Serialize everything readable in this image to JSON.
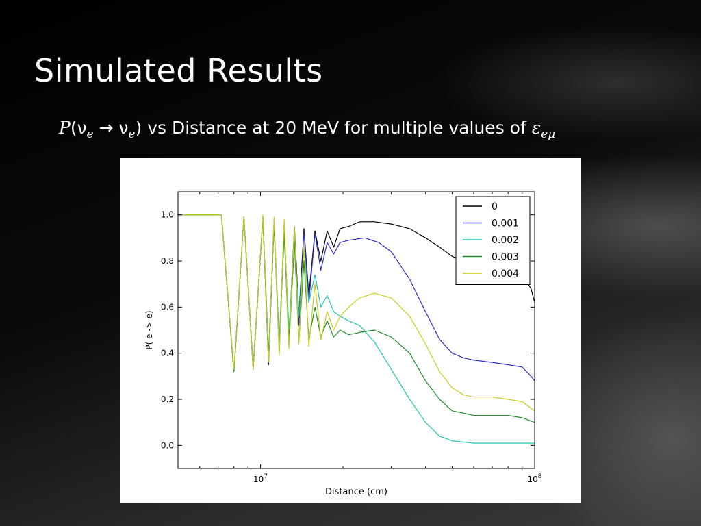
{
  "slide": {
    "title": "Simulated Results",
    "subtitle_prefix_p": "P",
    "subtitle_open": "(ν",
    "subtitle_sub1": "e",
    "subtitle_arrow": " → ν",
    "subtitle_sub2": "e",
    "subtitle_close": ")",
    "subtitle_text": " vs Distance at 20 MeV for multiple values of ",
    "subtitle_epsilon": "ε",
    "subtitle_epsilon_sub": "eμ"
  },
  "chart_data": {
    "type": "line",
    "xlabel": "Distance (cm)",
    "ylabel": "P( e -> e)",
    "x_scale": "log",
    "xlim": [
      5000000,
      100000000
    ],
    "ylim": [
      -0.1,
      1.1
    ],
    "x_ticks": [
      10000000,
      100000000
    ],
    "x_tick_labels": [
      {
        "base": "10",
        "exp": "7"
      },
      {
        "base": "10",
        "exp": "8"
      }
    ],
    "y_ticks": [
      0.0,
      0.2,
      0.4,
      0.6,
      0.8,
      1.0
    ],
    "y_tick_labels": [
      "0.0",
      "0.2",
      "0.4",
      "0.6",
      "0.8",
      "1.0"
    ],
    "grid": false,
    "legend_position": "top-right",
    "series": [
      {
        "name": "0",
        "color": "#000000",
        "points": [
          [
            5000000,
            1.0
          ],
          [
            7200000,
            1.0
          ],
          [
            8000000,
            0.32
          ],
          [
            8700000,
            0.99
          ],
          [
            9400000,
            0.33
          ],
          [
            10200000,
            0.99
          ],
          [
            10700000,
            0.35
          ],
          [
            11200000,
            0.97
          ],
          [
            11700000,
            0.42
          ],
          [
            12200000,
            0.96
          ],
          [
            12700000,
            0.46
          ],
          [
            13300000,
            0.95
          ],
          [
            13800000,
            0.56
          ],
          [
            14400000,
            0.94
          ],
          [
            15000000,
            0.65
          ],
          [
            15800000,
            0.93
          ],
          [
            16600000,
            0.8
          ],
          [
            17500000,
            0.93
          ],
          [
            18500000,
            0.86
          ],
          [
            19500000,
            0.94
          ],
          [
            21000000,
            0.95
          ],
          [
            23000000,
            0.97
          ],
          [
            26000000,
            0.97
          ],
          [
            30000000,
            0.96
          ],
          [
            35000000,
            0.94
          ],
          [
            40000000,
            0.9
          ],
          [
            45000000,
            0.86
          ],
          [
            50000000,
            0.82
          ],
          [
            55000000,
            0.8
          ],
          [
            60000000,
            0.79
          ],
          [
            70000000,
            0.78
          ],
          [
            80000000,
            0.76
          ],
          [
            90000000,
            0.74
          ],
          [
            97000000,
            0.68
          ],
          [
            100000000,
            0.62
          ]
        ]
      },
      {
        "name": "0.001",
        "color": "#2b2bcc",
        "points": [
          [
            5000000,
            1.0
          ],
          [
            7200000,
            1.0
          ],
          [
            8000000,
            0.32
          ],
          [
            8700000,
            0.99
          ],
          [
            9400000,
            0.33
          ],
          [
            10200000,
            0.99
          ],
          [
            10700000,
            0.36
          ],
          [
            11200000,
            0.97
          ],
          [
            11700000,
            0.4
          ],
          [
            12200000,
            0.95
          ],
          [
            12700000,
            0.45
          ],
          [
            13300000,
            0.94
          ],
          [
            13800000,
            0.52
          ],
          [
            14400000,
            0.93
          ],
          [
            15000000,
            0.62
          ],
          [
            15800000,
            0.92
          ],
          [
            16600000,
            0.76
          ],
          [
            17500000,
            0.88
          ],
          [
            18500000,
            0.83
          ],
          [
            19500000,
            0.88
          ],
          [
            21000000,
            0.89
          ],
          [
            24000000,
            0.9
          ],
          [
            27000000,
            0.88
          ],
          [
            30000000,
            0.84
          ],
          [
            35000000,
            0.72
          ],
          [
            40000000,
            0.58
          ],
          [
            45000000,
            0.46
          ],
          [
            50000000,
            0.4
          ],
          [
            55000000,
            0.38
          ],
          [
            60000000,
            0.37
          ],
          [
            70000000,
            0.36
          ],
          [
            80000000,
            0.35
          ],
          [
            90000000,
            0.34
          ],
          [
            97000000,
            0.3
          ],
          [
            100000000,
            0.28
          ]
        ]
      },
      {
        "name": "0.002",
        "color": "#22c4b0",
        "points": [
          [
            5000000,
            1.0
          ],
          [
            7200000,
            1.0
          ],
          [
            8000000,
            0.32
          ],
          [
            8700000,
            0.99
          ],
          [
            9400000,
            0.34
          ],
          [
            10200000,
            0.99
          ],
          [
            10700000,
            0.4
          ],
          [
            11200000,
            0.97
          ],
          [
            11700000,
            0.45
          ],
          [
            12200000,
            0.93
          ],
          [
            12700000,
            0.5
          ],
          [
            13300000,
            0.9
          ],
          [
            13800000,
            0.56
          ],
          [
            14400000,
            0.85
          ],
          [
            15000000,
            0.62
          ],
          [
            15800000,
            0.74
          ],
          [
            16600000,
            0.6
          ],
          [
            17500000,
            0.65
          ],
          [
            18500000,
            0.58
          ],
          [
            19500000,
            0.56
          ],
          [
            21000000,
            0.54
          ],
          [
            23000000,
            0.52
          ],
          [
            26000000,
            0.45
          ],
          [
            30000000,
            0.33
          ],
          [
            35000000,
            0.2
          ],
          [
            40000000,
            0.1
          ],
          [
            45000000,
            0.04
          ],
          [
            50000000,
            0.02
          ],
          [
            60000000,
            0.01
          ],
          [
            80000000,
            0.01
          ],
          [
            100000000,
            0.01
          ]
        ]
      },
      {
        "name": "0.003",
        "color": "#1f8c2a",
        "points": [
          [
            5000000,
            1.0
          ],
          [
            7200000,
            1.0
          ],
          [
            8000000,
            0.32
          ],
          [
            8700000,
            0.99
          ],
          [
            9400000,
            0.34
          ],
          [
            10200000,
            0.99
          ],
          [
            10700000,
            0.38
          ],
          [
            11200000,
            0.97
          ],
          [
            11700000,
            0.42
          ],
          [
            12200000,
            0.92
          ],
          [
            12700000,
            0.43
          ],
          [
            13300000,
            0.88
          ],
          [
            13800000,
            0.45
          ],
          [
            14400000,
            0.8
          ],
          [
            15000000,
            0.46
          ],
          [
            15800000,
            0.6
          ],
          [
            16600000,
            0.47
          ],
          [
            17500000,
            0.54
          ],
          [
            18500000,
            0.47
          ],
          [
            19500000,
            0.5
          ],
          [
            21000000,
            0.48
          ],
          [
            23000000,
            0.49
          ],
          [
            26000000,
            0.5
          ],
          [
            30000000,
            0.47
          ],
          [
            35000000,
            0.4
          ],
          [
            40000000,
            0.28
          ],
          [
            45000000,
            0.2
          ],
          [
            50000000,
            0.15
          ],
          [
            60000000,
            0.13
          ],
          [
            70000000,
            0.13
          ],
          [
            80000000,
            0.13
          ],
          [
            90000000,
            0.12
          ],
          [
            100000000,
            0.1
          ]
        ]
      },
      {
        "name": "0.004",
        "color": "#c8cc1e",
        "points": [
          [
            5000000,
            1.0
          ],
          [
            7200000,
            1.0
          ],
          [
            8000000,
            0.33
          ],
          [
            8700000,
            0.99
          ],
          [
            9400000,
            0.33
          ],
          [
            10200000,
            1.0
          ],
          [
            10700000,
            0.36
          ],
          [
            11200000,
            0.99
          ],
          [
            11700000,
            0.39
          ],
          [
            12200000,
            0.98
          ],
          [
            12700000,
            0.42
          ],
          [
            13300000,
            0.95
          ],
          [
            13800000,
            0.44
          ],
          [
            14400000,
            0.88
          ],
          [
            15000000,
            0.43
          ],
          [
            15800000,
            0.7
          ],
          [
            16600000,
            0.46
          ],
          [
            17500000,
            0.58
          ],
          [
            18500000,
            0.5
          ],
          [
            19500000,
            0.56
          ],
          [
            21000000,
            0.6
          ],
          [
            23000000,
            0.64
          ],
          [
            26000000,
            0.66
          ],
          [
            30000000,
            0.64
          ],
          [
            35000000,
            0.56
          ],
          [
            40000000,
            0.44
          ],
          [
            45000000,
            0.32
          ],
          [
            50000000,
            0.25
          ],
          [
            55000000,
            0.22
          ],
          [
            60000000,
            0.21
          ],
          [
            70000000,
            0.21
          ],
          [
            80000000,
            0.2
          ],
          [
            90000000,
            0.19
          ],
          [
            100000000,
            0.15
          ]
        ]
      }
    ]
  }
}
